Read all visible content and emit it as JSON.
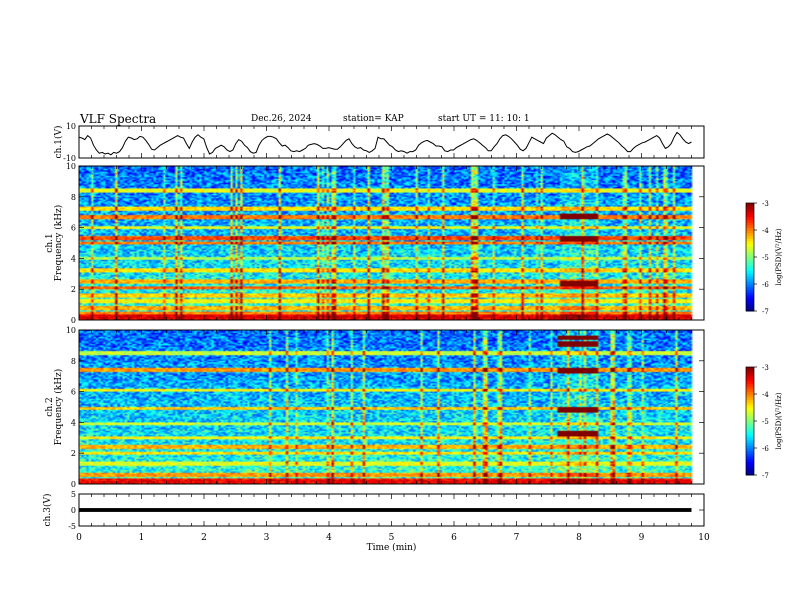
{
  "header": {
    "title": "VLF Spectra",
    "date": "Dec.26, 2024",
    "station": "station= KAP",
    "start": "start  UT =   11: 10: 1"
  },
  "chart_data": [
    {
      "type": "line",
      "id": "waveform-ch1",
      "ylabel": "ch.1(V)",
      "ylim": [
        -10,
        10
      ],
      "yticks": [
        "10",
        "-10"
      ],
      "xlim": [
        0,
        10
      ],
      "x_end": 9.8,
      "series": [
        {
          "values": [
            3,
            2.5,
            1.5,
            4,
            2.5,
            -2,
            -5,
            -7,
            -6.5,
            -7.5,
            -7,
            -8,
            -6.5,
            -7,
            -6,
            -3.5,
            0.5,
            3,
            2.5,
            1.5,
            2,
            3.5,
            3,
            1,
            -1.5,
            -4.5,
            -5,
            -3.5,
            -2,
            -1,
            0,
            1,
            2,
            3,
            4,
            3,
            2.5,
            -1,
            -4,
            0,
            3,
            4.5,
            3,
            2,
            -3.5,
            -7.5,
            -6.5,
            -4,
            -3,
            -2,
            -3,
            -5,
            -6,
            -5,
            -1,
            1.5,
            0.5,
            -2,
            -3.5,
            -6,
            -7,
            -6.5,
            -2,
            1,
            2.5,
            3.5,
            3.5,
            3,
            2,
            -0.5,
            -2.5,
            -2,
            -3.5,
            -5.5,
            -6,
            -5.5,
            -6,
            -5,
            -4,
            -2,
            -1.5,
            -1,
            -1.5,
            -2.5,
            -4,
            -4,
            -3.5,
            -4,
            -4.5,
            -4.5,
            -3,
            -1,
            1,
            2,
            -1,
            -3,
            -4,
            -3.5,
            -5,
            -5.5,
            -6.5,
            -5.5,
            -4,
            3,
            2,
            2,
            0,
            -2,
            -3,
            -5,
            -6,
            -5.5,
            -6,
            -7,
            -6,
            -6,
            -5,
            -2,
            -0.5,
            0.5,
            1,
            0,
            -1,
            -2.5,
            -2.5,
            -3,
            -5.5,
            -6,
            -5,
            -5,
            -3.5,
            -2.5,
            -1.5,
            -0.5,
            0.5,
            1.5,
            2,
            1,
            -0.5,
            -2,
            -3.5,
            -5.5,
            -5.5,
            -3,
            -1,
            2,
            4,
            4.5,
            3.5,
            2,
            0,
            -2,
            -4.5,
            -5.5,
            -4,
            -0.5,
            3,
            2,
            1,
            0,
            -1,
            2.5,
            4,
            5.5,
            4.5,
            3,
            1.5,
            0.5,
            -3,
            -4,
            -6,
            -6.5,
            -6,
            -5,
            -4,
            -3,
            -2.5,
            -1,
            0.5,
            2,
            3,
            4,
            5,
            4,
            2.5,
            1,
            -0.5,
            -2.5,
            -4,
            -6,
            -6,
            -4,
            -2.5,
            -1.5,
            -0.5,
            0,
            1,
            2,
            3,
            4,
            2.5,
            -1,
            -4,
            -3,
            -1,
            3,
            6,
            4.5,
            2,
            0,
            -1,
            0
          ]
        }
      ]
    },
    {
      "type": "heatmap",
      "id": "spectrogram-ch1",
      "ylabel": "ch.1",
      "ylabel2": "Frequency (kHz)",
      "ylim": [
        0,
        10
      ],
      "yticks": [
        "0",
        "2",
        "4",
        "6",
        "8",
        "10"
      ],
      "xlim": [
        0,
        10
      ],
      "x_end": 9.8,
      "colorbar": {
        "label": "log(PSD)(V²/Hz)",
        "range": [
          -7,
          -3
        ],
        "ticks": [
          "-3",
          "-4",
          "-5",
          "-6",
          "-7"
        ]
      },
      "bands": [
        {
          "kHz": 0.2,
          "level": -3.4
        },
        {
          "kHz": 0.45,
          "level": -4.0
        },
        {
          "kHz": 0.8,
          "level": -4.2
        },
        {
          "kHz": 1.2,
          "level": -4.5
        },
        {
          "kHz": 1.6,
          "level": -4.3
        },
        {
          "kHz": 2.1,
          "level": -3.9
        },
        {
          "kHz": 2.5,
          "level": -4.2
        },
        {
          "kHz": 3.2,
          "level": -4.4
        },
        {
          "kHz": 4.0,
          "level": -4.8
        },
        {
          "kHz": 5.0,
          "level": -4.0
        },
        {
          "kHz": 5.3,
          "level": -3.8
        },
        {
          "kHz": 6.0,
          "level": -4.6
        },
        {
          "kHz": 6.7,
          "level": -4.0
        },
        {
          "kHz": 7.2,
          "level": -4.4
        },
        {
          "kHz": 8.4,
          "level": -4.6
        }
      ],
      "events": [
        {
          "x0": 7.7,
          "x1": 8.3,
          "kHz": [
            2.4,
            5.3,
            6.7
          ],
          "level": -3.0
        }
      ]
    },
    {
      "type": "heatmap",
      "id": "spectrogram-ch2",
      "ylabel": "ch.2",
      "ylabel2": "Frequency (kHz)",
      "ylim": [
        0,
        10
      ],
      "yticks": [
        "0",
        "2",
        "4",
        "6",
        "8",
        "10"
      ],
      "xlim": [
        0,
        10
      ],
      "x_end": 9.8,
      "colorbar": {
        "label": "log(PSD)(V²/Hz)",
        "range": [
          -7,
          -3
        ],
        "ticks": [
          "-3",
          "-4",
          "-5",
          "-6",
          "-7"
        ]
      },
      "bands": [
        {
          "kHz": 0.25,
          "level": -3.6
        },
        {
          "kHz": 0.6,
          "level": -4.1
        },
        {
          "kHz": 1.3,
          "level": -4.6
        },
        {
          "kHz": 2.0,
          "level": -4.4
        },
        {
          "kHz": 2.4,
          "level": -4.2
        },
        {
          "kHz": 3.0,
          "level": -4.5
        },
        {
          "kHz": 3.9,
          "level": -4.7
        },
        {
          "kHz": 4.9,
          "level": -4.3
        },
        {
          "kHz": 6.1,
          "level": -4.5
        },
        {
          "kHz": 7.4,
          "level": -4.1
        },
        {
          "kHz": 8.5,
          "level": -4.7
        }
      ],
      "events": [
        {
          "x0": 7.65,
          "x1": 8.3,
          "kHz": [
            3.3,
            4.8,
            7.4,
            9.1,
            9.5
          ],
          "level": -3.0
        }
      ]
    },
    {
      "type": "line",
      "id": "waveform-ch3",
      "ylabel": "ch.3(V)",
      "ylim": [
        -5,
        5
      ],
      "yticks": [
        "5",
        "0",
        "-5"
      ],
      "xlim": [
        0,
        10
      ],
      "x_end": 9.8,
      "xlabel": "Time (min)",
      "xticks": [
        "0",
        "1",
        "2",
        "3",
        "4",
        "5",
        "6",
        "7",
        "8",
        "9",
        "10"
      ],
      "series": [
        {
          "values": [
            0.0
          ]
        }
      ],
      "trace_band": [
        -0.6,
        0.6
      ]
    }
  ]
}
